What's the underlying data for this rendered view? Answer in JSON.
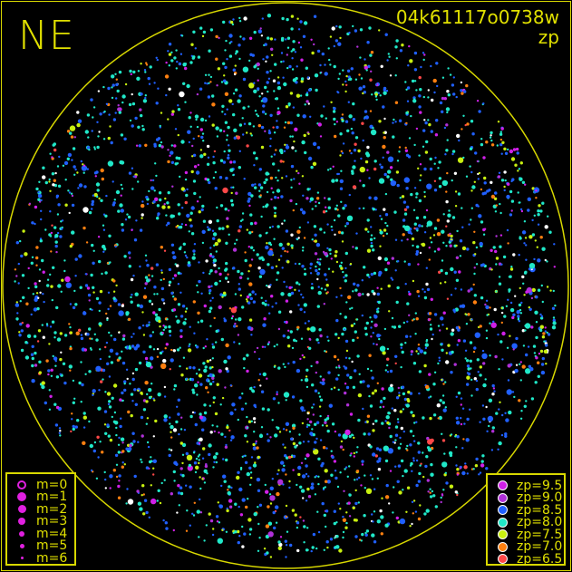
{
  "header": {
    "direction": "NE",
    "frame_id": "04k61117o0738w",
    "mode": "zp"
  },
  "colors": {
    "frame": "#d8d800",
    "text": "#e0e000",
    "background": "#000000",
    "unmatched": "#ffffff"
  },
  "chart_data": {
    "type": "scatter",
    "title": "04k61117o0738w",
    "subtitle": "zp",
    "description_of_points": "all-sky star positions; symbol size by magnitude, color by zero point",
    "magnitude_legend": [
      {
        "label": "m=0",
        "style": "ring"
      },
      {
        "label": "m=1",
        "style": "filled"
      },
      {
        "label": "m=2",
        "style": "filled"
      },
      {
        "label": "m=3",
        "style": "filled"
      },
      {
        "label": "m=4",
        "style": "filled"
      },
      {
        "label": "m=5",
        "style": "filled"
      },
      {
        "label": "m=6",
        "style": "filled"
      }
    ],
    "zp_legend": [
      {
        "label": "zp=9.5",
        "value": 9.5,
        "color": "#d020e8"
      },
      {
        "label": "zp=9.0",
        "value": 9.0,
        "color": "#b030d8"
      },
      {
        "label": "zp=8.5",
        "value": 8.5,
        "color": "#2060ff"
      },
      {
        "label": "zp=8.0",
        "value": 8.0,
        "color": "#20e8c8"
      },
      {
        "label": "zp=7.5",
        "value": 7.5,
        "color": "#c8f010"
      },
      {
        "label": "zp=7.0",
        "value": 7.0,
        "color": "#ff8010"
      },
      {
        "label": "zp=6.5",
        "value": 6.5,
        "color": "#ff4848"
      }
    ],
    "zp_distribution": {
      "9.5": 0.04,
      "9.0": 0.05,
      "8.5": 0.3,
      "8.0": 0.4,
      "7.5": 0.1,
      "7.0": 0.05,
      "6.5": 0.02,
      "unmatched": 0.04
    }
  }
}
